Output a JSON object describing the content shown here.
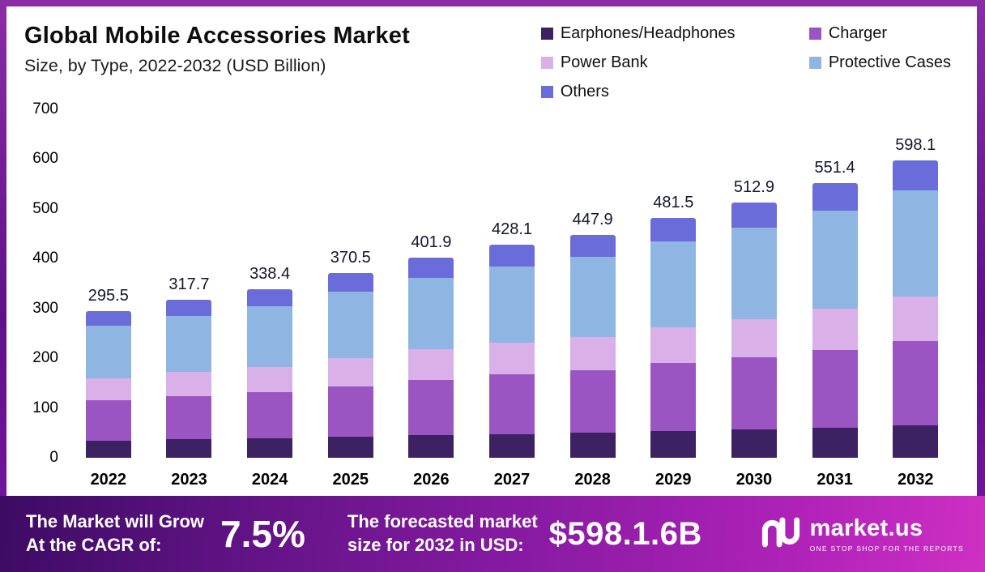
{
  "chart_data": {
    "type": "bar",
    "stacked": true,
    "title": "Global Mobile Accessories Market",
    "subtitle": "Size, by Type, 2022-2032 (USD Billion)",
    "categories": [
      "2022",
      "2023",
      "2024",
      "2025",
      "2026",
      "2027",
      "2028",
      "2029",
      "2030",
      "2031",
      "2032"
    ],
    "series": [
      {
        "name": "Earphones/Headphones",
        "color": "#3c2263",
        "values": [
          35,
          37,
          39,
          42,
          45,
          48,
          50,
          54,
          57,
          61,
          65
        ]
      },
      {
        "name": "Charger",
        "color": "#9a55c2",
        "values": [
          80,
          87,
          93,
          102,
          112,
          120,
          126,
          136,
          145,
          156,
          170
        ]
      },
      {
        "name": "Power Bank",
        "color": "#d9b0e8",
        "values": [
          45,
          48,
          51,
          56,
          61,
          64,
          67,
          72,
          77,
          82,
          89
        ]
      },
      {
        "name": "Protective Cases",
        "color": "#8fb6e2",
        "values": [
          105,
          113,
          121,
          133,
          144,
          153,
          160,
          172,
          183,
          197,
          213
        ]
      },
      {
        "name": "Others",
        "color": "#6a6cda",
        "values": [
          30.5,
          32.7,
          34.4,
          37.5,
          39.9,
          43.1,
          44.9,
          47.5,
          50.9,
          55.4,
          61.1
        ]
      }
    ],
    "totals": [
      "295.5",
      "317.7",
      "338.4",
      "370.5",
      "401.9",
      "428.1",
      "447.9",
      "481.5",
      "512.9",
      "551.4",
      "598.1"
    ],
    "ylim": [
      0,
      700
    ],
    "yticks": [
      0,
      100,
      200,
      300,
      400,
      500,
      600,
      700
    ],
    "legend_position": "top-right",
    "grid": false
  },
  "banner": {
    "cagr_label_line1": "The Market will Grow",
    "cagr_label_line2": "At the CAGR of:",
    "cagr_value": "7.5%",
    "forecast_label_line1": "The forecasted market",
    "forecast_label_line2": "size for 2032 in USD:",
    "forecast_value": "$598.1.6B",
    "logo_text": "market.us",
    "logo_tagline": "ONE STOP SHOP FOR THE REPORTS"
  },
  "colors": {
    "frame_purple": "#6d1593",
    "banner_magenta": "#cf2fc3",
    "card_background": "#ffffff"
  }
}
